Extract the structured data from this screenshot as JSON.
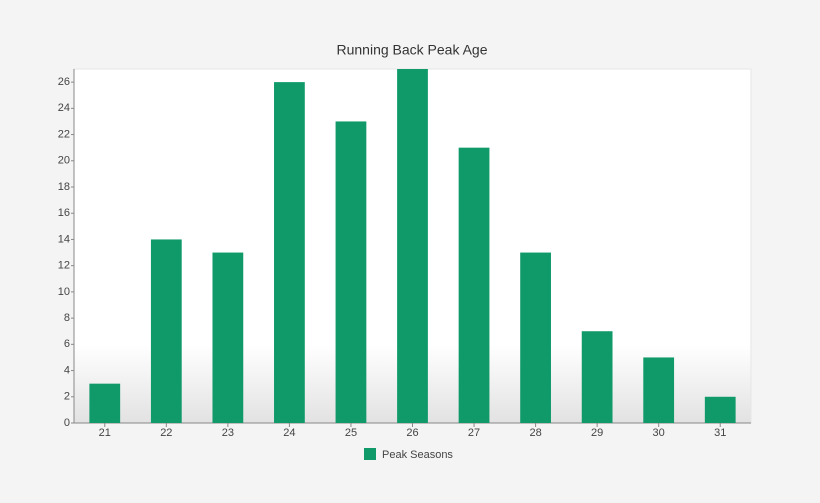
{
  "chart_data": {
    "type": "bar",
    "title": "Running Back Peak Age",
    "categories": [
      "21",
      "22",
      "23",
      "24",
      "25",
      "26",
      "27",
      "28",
      "29",
      "30",
      "31"
    ],
    "series": [
      {
        "name": "Peak Seasons",
        "color": "#119a69",
        "values": [
          3,
          14,
          13,
          26,
          23,
          27,
          21,
          13,
          7,
          5,
          2
        ]
      }
    ],
    "ylim": [
      0,
      27
    ],
    "yticks": [
      0,
      2,
      4,
      6,
      8,
      10,
      12,
      14,
      16,
      18,
      20,
      22,
      24,
      26
    ],
    "grid": false
  }
}
